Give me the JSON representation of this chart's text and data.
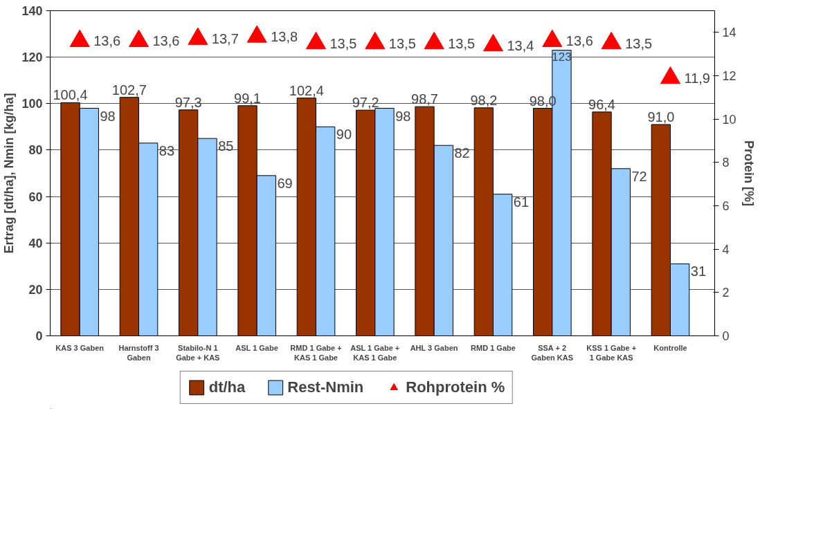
{
  "chart_data": {
    "type": "bar",
    "categories": [
      "KAS 3 Gaben",
      "Harnstoff 3 Gaben",
      "Stabilo-N 1 Gabe + KAS",
      "ASL 1 Gabe",
      "RMD 1 Gabe + KAS 1 Gabe",
      "ASL 1 Gabe + KAS 1 Gabe",
      "AHL 3 Gaben",
      "RMD 1 Gabe",
      "SSA + 2 Gaben KAS",
      "KSS 1 Gabe + 1 Gabe KAS",
      "Kontrolle"
    ],
    "ylabel": "Ertrag [dt/ha], Nmin [kg/ha]",
    "y2label": "Protein [%]",
    "ylim": [
      0,
      140
    ],
    "yticks": [
      0,
      20,
      40,
      60,
      80,
      100,
      120,
      140
    ],
    "y2lim": [
      0,
      15
    ],
    "y2ticks": [
      0,
      2,
      4,
      6,
      8,
      10,
      12,
      14
    ],
    "grid": "y",
    "legend": "bottom",
    "marker": "triangle",
    "series": [
      {
        "name": "dt/ha",
        "color": "#993300",
        "values": [
          100.4,
          102.7,
          97.3,
          99.1,
          102.4,
          97.2,
          98.7,
          98.2,
          98.0,
          96.4,
          91.0
        ],
        "value_labels": [
          "100,4",
          "102,7",
          "97,3",
          "99,1",
          "102,4",
          "97,2",
          "98,7",
          "98,2",
          "98,0",
          "96,4",
          "91,0"
        ]
      },
      {
        "name": "Rest-Nmin",
        "color": "#99ccff",
        "values": [
          98,
          83,
          85,
          69,
          90,
          98,
          82,
          61,
          123,
          72,
          31
        ],
        "value_labels": [
          "98",
          "83",
          "85",
          "69",
          "90",
          "98",
          "82",
          "61",
          "123",
          "72",
          "31"
        ]
      },
      {
        "name": "Rohprotein %",
        "type": "scatter",
        "axis": "y2",
        "color": "#ff0000",
        "values": [
          13.6,
          13.6,
          13.7,
          13.8,
          13.5,
          13.5,
          13.5,
          13.4,
          13.6,
          13.5,
          11.9
        ],
        "value_labels": [
          "13,6",
          "13,6",
          "13,7",
          "13,8",
          "13,5",
          "13,5",
          "13,5",
          "13,4",
          "13,6",
          "13,5",
          "11,9"
        ]
      }
    ]
  }
}
